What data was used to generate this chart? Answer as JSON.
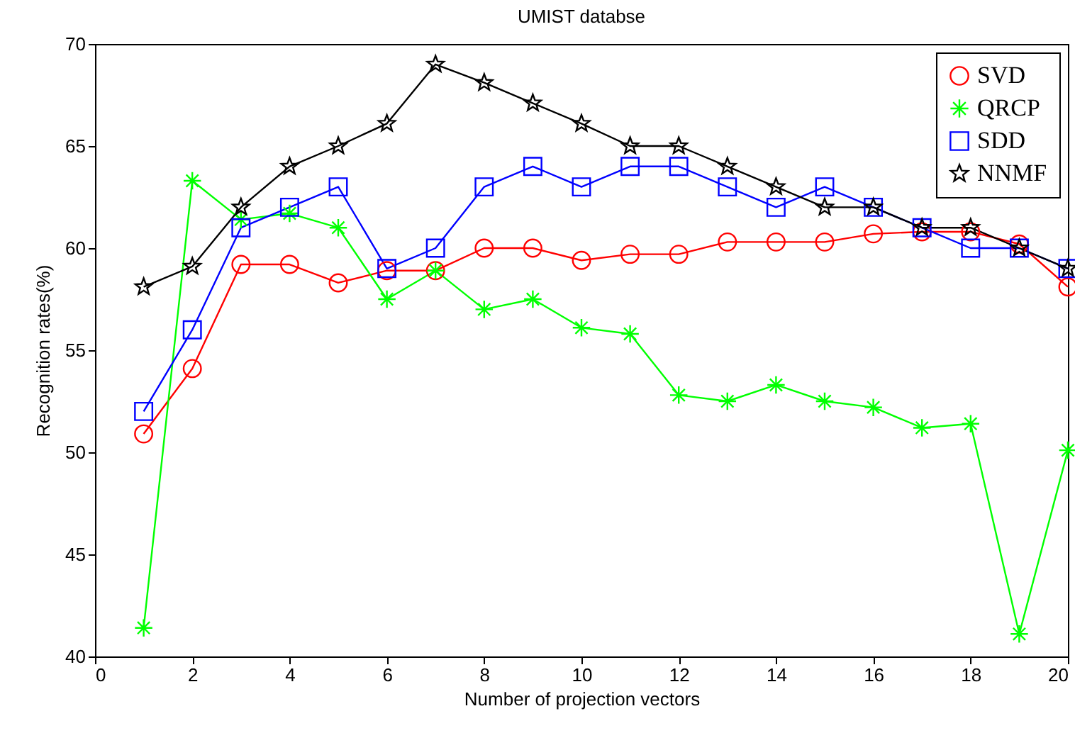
{
  "chart_data": {
    "type": "line",
    "title": "UMIST databse",
    "xlabel": "Number of projection vectors",
    "ylabel": "Recognition rates(%)",
    "x": [
      1,
      2,
      3,
      4,
      5,
      6,
      7,
      8,
      9,
      10,
      11,
      12,
      13,
      14,
      15,
      16,
      17,
      18,
      19,
      20
    ],
    "xlim": [
      0,
      20
    ],
    "xticks": [
      0,
      2,
      4,
      6,
      8,
      10,
      12,
      14,
      16,
      18,
      20
    ],
    "ylim": [
      40,
      70
    ],
    "yticks": [
      40,
      45,
      50,
      55,
      60,
      65,
      70
    ],
    "grid": false,
    "legend": "top right",
    "line_style": "solid",
    "series": [
      {
        "name": "SVD",
        "color": "#ff0000",
        "marker": "circle",
        "values": [
          50.9,
          54.1,
          59.2,
          59.2,
          58.3,
          58.9,
          58.9,
          60,
          60,
          59.4,
          59.7,
          59.7,
          60.3,
          60.3,
          60.3,
          60.7,
          60.8,
          60.8,
          60.2,
          58.1
        ]
      },
      {
        "name": "QRCP",
        "color": "#00ff00",
        "marker": "cross",
        "values": [
          41.4,
          63.3,
          61.4,
          61.7,
          61,
          57.5,
          58.9,
          57,
          57.5,
          56.1,
          55.8,
          52.8,
          52.5,
          53.3,
          52.5,
          52.2,
          51.2,
          51.4,
          41.1,
          50.1
        ]
      },
      {
        "name": "SDD",
        "color": "#0000ff",
        "marker": "square",
        "values": [
          52,
          56,
          61,
          62,
          63,
          59,
          60,
          63,
          64,
          63,
          64,
          64,
          63,
          62,
          63,
          62,
          61,
          60,
          60,
          59
        ]
      },
      {
        "name": "NNMF",
        "color": "#000000",
        "marker": "star",
        "values": [
          58.1,
          59.1,
          62,
          64,
          65,
          66.1,
          69,
          68.1,
          67.1,
          66.1,
          65,
          65,
          64,
          63,
          62,
          62,
          61,
          61,
          60,
          59
        ]
      }
    ]
  }
}
